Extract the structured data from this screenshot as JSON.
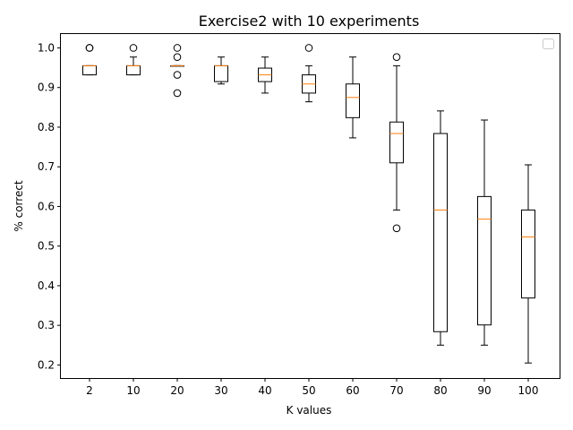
{
  "chart_data": {
    "type": "box",
    "title": "Exercise2 with 10 experiments",
    "xlabel": "K values",
    "ylabel": "% correct",
    "categories": [
      "2",
      "10",
      "20",
      "30",
      "40",
      "50",
      "60",
      "70",
      "80",
      "90",
      "100"
    ],
    "ylim": [
      0.167,
      1.035
    ],
    "yticks": [
      "0.2",
      "0.3",
      "0.4",
      "0.5",
      "0.6",
      "0.7",
      "0.8",
      "0.9",
      "1.0"
    ],
    "grid": false,
    "legend": "empty legend box, top-right",
    "colors": {
      "box": "#000000",
      "median": "#ff7f0e",
      "frame": "#000000",
      "legend_border": "#cccccc"
    },
    "boxes": [
      {
        "whisker_low": 0.932,
        "q1": 0.932,
        "median": 0.955,
        "q3": 0.955,
        "whisker_high": 0.955,
        "fliers": [
          1.0,
          1.0
        ]
      },
      {
        "whisker_low": 0.932,
        "q1": 0.932,
        "median": 0.955,
        "q3": 0.955,
        "whisker_high": 0.977,
        "fliers": [
          1.0
        ]
      },
      {
        "whisker_low": 0.955,
        "q1": 0.955,
        "median": 0.955,
        "q3": 0.955,
        "whisker_high": 0.955,
        "fliers": [
          1.0,
          0.977,
          0.932,
          0.886
        ]
      },
      {
        "whisker_low": 0.909,
        "q1": 0.915,
        "median": 0.955,
        "q3": 0.955,
        "whisker_high": 0.977,
        "fliers": []
      },
      {
        "whisker_low": 0.886,
        "q1": 0.915,
        "median": 0.932,
        "q3": 0.949,
        "whisker_high": 0.977,
        "fliers": []
      },
      {
        "whisker_low": 0.864,
        "q1": 0.886,
        "median": 0.909,
        "q3": 0.932,
        "whisker_high": 0.955,
        "fliers": [
          1.0
        ]
      },
      {
        "whisker_low": 0.773,
        "q1": 0.824,
        "median": 0.875,
        "q3": 0.909,
        "whisker_high": 0.977,
        "fliers": []
      },
      {
        "whisker_low": 0.591,
        "q1": 0.71,
        "median": 0.784,
        "q3": 0.813,
        "whisker_high": 0.955,
        "fliers": [
          0.977,
          0.545
        ]
      },
      {
        "whisker_low": 0.25,
        "q1": 0.284,
        "median": 0.591,
        "q3": 0.784,
        "whisker_high": 0.841,
        "fliers": []
      },
      {
        "whisker_low": 0.25,
        "q1": 0.301,
        "median": 0.568,
        "q3": 0.625,
        "whisker_high": 0.818,
        "fliers": []
      },
      {
        "whisker_low": 0.205,
        "q1": 0.369,
        "median": 0.523,
        "q3": 0.591,
        "whisker_high": 0.705,
        "fliers": []
      }
    ]
  }
}
